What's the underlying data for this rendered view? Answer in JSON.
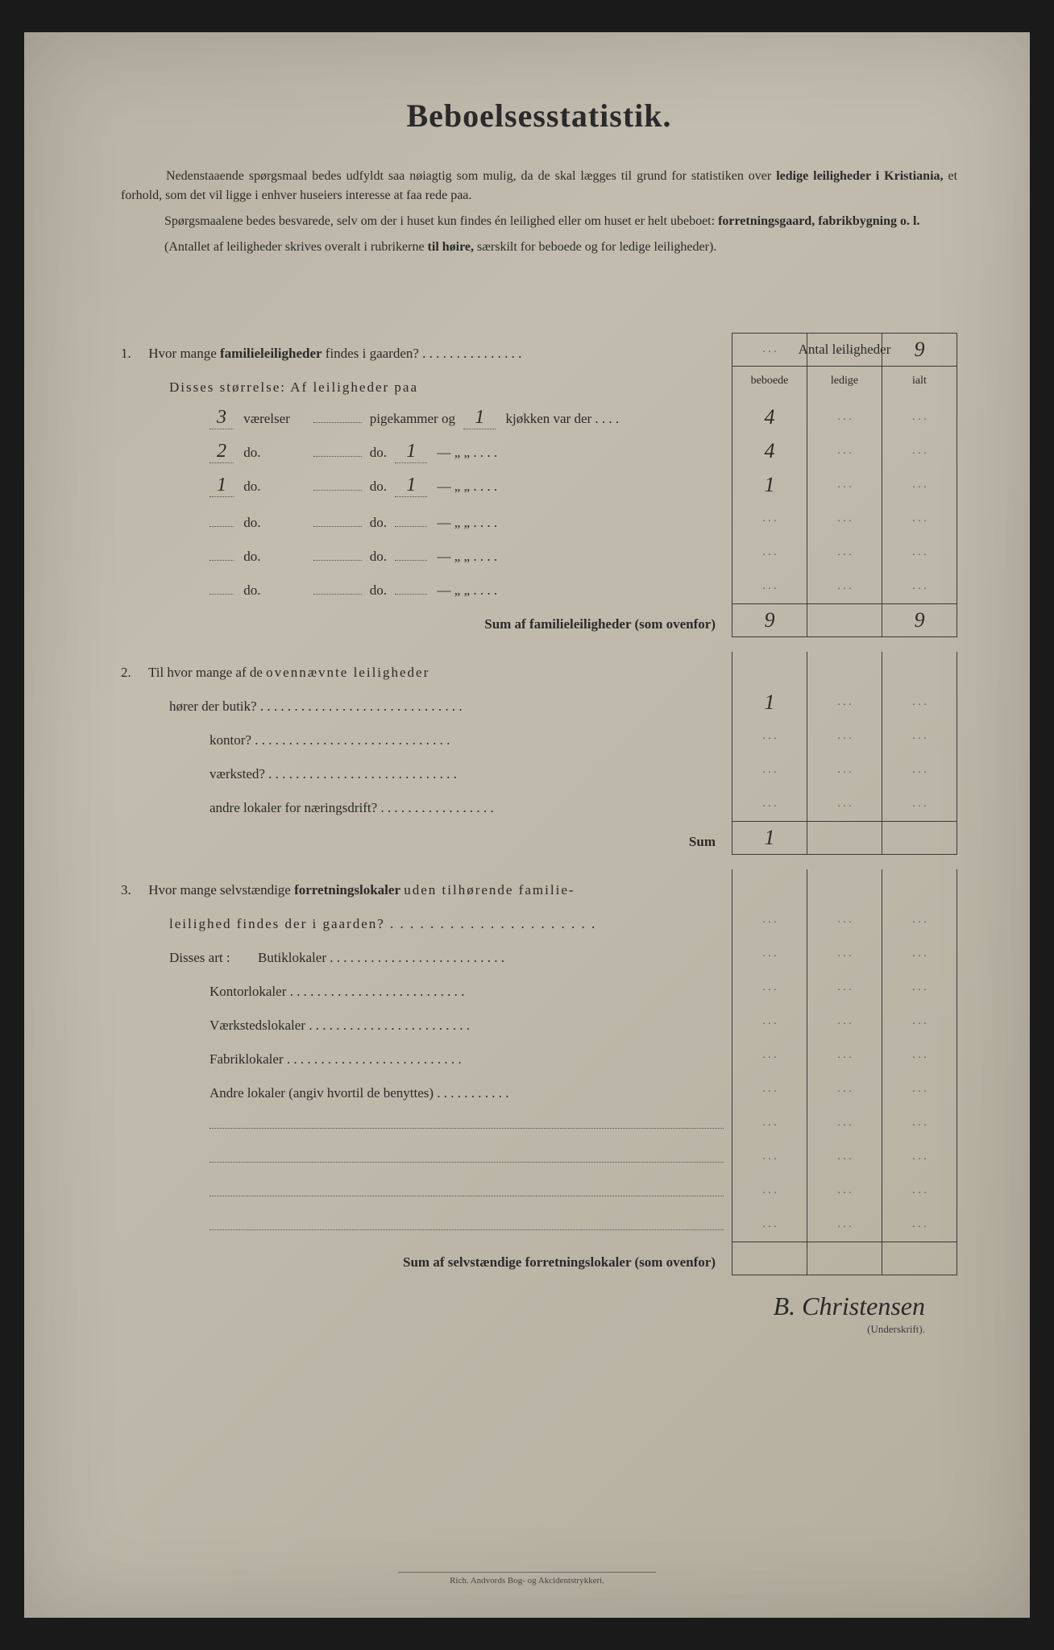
{
  "title": "Beboelsesstatistik.",
  "intro": {
    "p1a": "Nedenstaaende spørgsmaal bedes udfyldt saa nøiagtig som mulig, da de skal lægges til grund for statistiken over ",
    "p1b": "ledige leiligheder i Kristiania,",
    "p1c": " et forhold, som det vil ligge i enhver huseiers interesse at faa rede paa.",
    "p2a": "Spørgsmaalene bedes besvarede, selv om der i huset kun findes én leilighed eller om huset er helt ubeboet: ",
    "p2b": "forretningsgaard, fabrikbygning o. l.",
    "p3a": "(Antallet af leiligheder skrives overalt i rubrikerne ",
    "p3b": "til høire,",
    "p3c": " særskilt for beboede og for ledige leiligheder)."
  },
  "header": {
    "title": "Antal leiligheder",
    "col1": "beboede",
    "col2": "ledige",
    "col3": "ialt"
  },
  "q1": {
    "num": "1.",
    "text_a": "Hvor mange ",
    "text_b": "familieleiligheder",
    "text_c": " findes i gaarden? . . . . . . . . . . . . . . .",
    "ialt": "9",
    "sub_label": "Disses størrelse:   Af leiligheder paa",
    "rows": [
      {
        "v": "3",
        "mid": "værelser",
        "pk": "",
        "kj": "1",
        "tail": "kjøkken var der  . . . .",
        "beboede": "4",
        "ledige": "",
        "ialt": ""
      },
      {
        "v": "2",
        "mid": "do.",
        "pk": "",
        "kj": "1",
        "tail": "—     „    „     . . . .",
        "beboede": "4",
        "ledige": "",
        "ialt": ""
      },
      {
        "v": "1",
        "mid": "do.",
        "pk": "",
        "kj": "1",
        "tail": "—     „    „     . . . .",
        "beboede": "1",
        "ledige": "",
        "ialt": ""
      },
      {
        "v": "",
        "mid": "do.",
        "pk": "",
        "kj": "",
        "tail": "—     „    „     . . . .",
        "beboede": "",
        "ledige": "",
        "ialt": ""
      },
      {
        "v": "",
        "mid": "do.",
        "pk": "",
        "kj": "",
        "tail": "—     „    „     . . . .",
        "beboede": "",
        "ledige": "",
        "ialt": ""
      },
      {
        "v": "",
        "mid": "do.",
        "pk": "",
        "kj": "",
        "tail": "—     „    „     . . . .",
        "beboede": "",
        "ledige": "",
        "ialt": ""
      }
    ],
    "sum_label": "Sum af familieleiligheder",
    "sum_paren": " (som ovenfor)",
    "sum_beboede": "9",
    "sum_ledige": "",
    "sum_ialt": "9"
  },
  "q2": {
    "num": "2.",
    "text_a": "Til hvor mange af de ",
    "text_b": "ovennævnte leiligheder",
    "rows": [
      {
        "label": "hører der butik? . . . . . . . . . . . . . . . . . . . . . . . . . . . . . .",
        "beboede": "1",
        "ledige": "",
        "ialt": ""
      },
      {
        "label": "kontor? . . . . . . . . . . . . . . . . . . . . . . . . . . . . .",
        "beboede": "",
        "ledige": "",
        "ialt": ""
      },
      {
        "label": "værksted? . . . . . . . . . . . . . . . . . . . . . . . . . . . .",
        "beboede": "",
        "ledige": "",
        "ialt": ""
      },
      {
        "label": "andre lokaler for næringsdrift? . . . . . . . . . . . . . . . . .",
        "beboede": "",
        "ledige": "",
        "ialt": ""
      }
    ],
    "sum_label": "Sum",
    "sum_beboede": "1",
    "sum_ledige": "",
    "sum_ialt": ""
  },
  "q3": {
    "num": "3.",
    "text_a": "Hvor mange selvstændige ",
    "text_b": "forretningslokaler",
    "text_c": " uden tilhørende familie-",
    "text_d": "leilighed findes der i gaarden? . . . . . . . . . . . . . . . . . . . . .",
    "sub_label": "Disses art :",
    "rows": [
      {
        "label": "Butiklokaler  . . . . . . . . . . . . . . . . . . . . . . . . . .",
        "beboede": "",
        "ledige": "",
        "ialt": ""
      },
      {
        "label": "Kontorlokaler . . . . . . . . . . . . . . . . . . . . . . . . . .",
        "beboede": "",
        "ledige": "",
        "ialt": ""
      },
      {
        "label": "Værkstedslokaler . . . . . . . . . . . . . . . . . . . . . . . .",
        "beboede": "",
        "ledige": "",
        "ialt": ""
      },
      {
        "label": "Fabriklokaler . . . . . . . . . . . . . . . . . . . . . . . . . .",
        "beboede": "",
        "ledige": "",
        "ialt": ""
      },
      {
        "label": "Andre lokaler (angiv hvortil de benyttes) . . . . . . . . . . .",
        "beboede": "",
        "ledige": "",
        "ialt": ""
      },
      {
        "label": "",
        "beboede": "",
        "ledige": "",
        "ialt": ""
      },
      {
        "label": "",
        "beboede": "",
        "ledige": "",
        "ialt": ""
      },
      {
        "label": "",
        "beboede": "",
        "ledige": "",
        "ialt": ""
      },
      {
        "label": "",
        "beboede": "",
        "ledige": "",
        "ialt": ""
      }
    ],
    "sum_label": "Sum af selvstændige forretningslokaler",
    "sum_paren": " (som ovenfor)",
    "sum_beboede": "",
    "sum_ledige": "",
    "sum_ialt": ""
  },
  "signature": "B. Christensen",
  "signature_label": "(Underskrift).",
  "footer": "Rich. Andvords Bog- og Akcidentstrykkeri.",
  "colors": {
    "page_bg": "#bdb7a9",
    "text": "#2a2a2a",
    "border": "#3a3a3a"
  }
}
